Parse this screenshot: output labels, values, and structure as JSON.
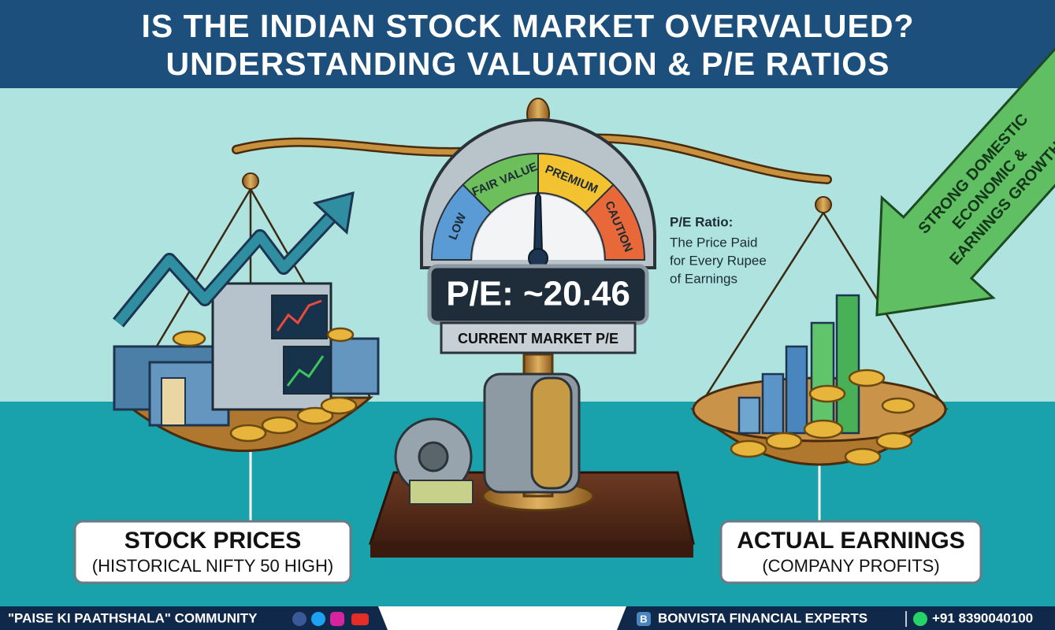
{
  "header": {
    "title_lines": [
      "IS THE INDIAN STOCK MARKET OVERVALUED?",
      "UNDERSTANDING VALUATION & P/E RATIOS"
    ]
  },
  "gauge": {
    "zones": [
      "LOW",
      "FAIR VALUE",
      "PREMIUM",
      "CAUTION"
    ],
    "reading": "P/E: ~20.46",
    "caption": "CURRENT MARKET P/E"
  },
  "annotation": {
    "title": "P/E Ratio:",
    "lines": [
      "The Price Paid",
      "for Every Rupee",
      "of Earnings"
    ]
  },
  "arrow": {
    "lines": [
      "STRONG DOMESTIC",
      "ECONOMIC &",
      "EARNINGS GROWTH"
    ]
  },
  "left_pan": {
    "title": "STOCK PRICES",
    "subtitle": "(HISTORICAL NIFTY 50 HIGH)"
  },
  "right_pan": {
    "title": "ACTUAL EARNINGS",
    "subtitle": "(COMPANY PROFITS)"
  },
  "footer": {
    "left": "\"PAISE KI PAATHSHALA\" COMMUNITY",
    "brand_icon": "B",
    "brand": "BONVISTA FINANCIAL EXPERTS",
    "phone": "+91 8390040100"
  }
}
